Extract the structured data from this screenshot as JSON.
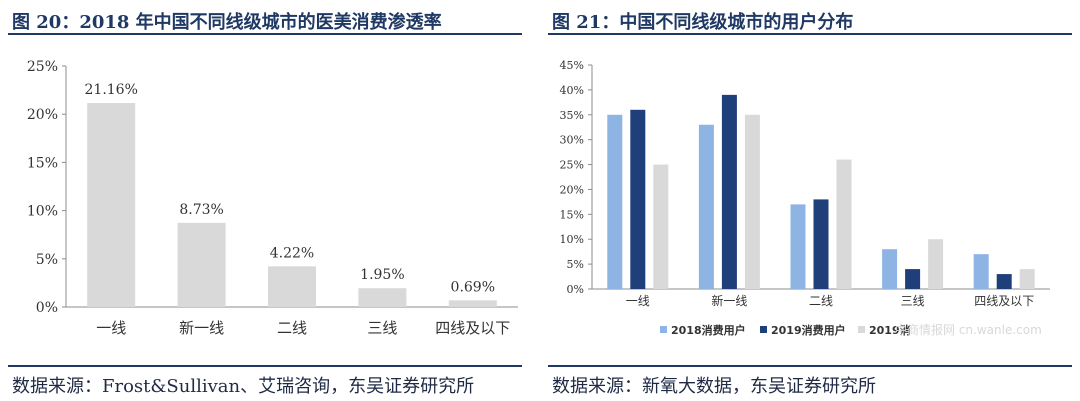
{
  "left": {
    "title": "图 20：2018 年中国不同线级城市的医美消费渗透率",
    "source": "数据来源：Frost&Sullivan、艾瑞咨询，东吴证券研究所"
  },
  "right": {
    "title": "图 21：中国不同线级城市的用户分布",
    "source": "数据来源：新氧大数据，东吴证券研究所"
  },
  "watermark": "中商情报网 cn.wanle.com",
  "colors": {
    "left_bar": "#d9d9d9",
    "series_2018": "#8eb4e3",
    "series_2019_consume": "#1f3f7a",
    "series_2019_other": "#d9d9d9",
    "title": "#1f3864"
  },
  "chart_data": [
    {
      "type": "bar",
      "categories": [
        "一线",
        "新一线",
        "二线",
        "三线",
        "四线及以下"
      ],
      "values": [
        21.16,
        8.73,
        4.22,
        1.95,
        0.69
      ],
      "data_labels": [
        "21.16%",
        "8.73%",
        "4.22%",
        "1.95%",
        "0.69%"
      ],
      "yticks": [
        "0%",
        "5%",
        "10%",
        "15%",
        "20%",
        "25%"
      ],
      "ylim": [
        0,
        25
      ],
      "grid": false,
      "legend": "none"
    },
    {
      "type": "bar",
      "categories": [
        "一线",
        "新一线",
        "二线",
        "三线",
        "四线及以下"
      ],
      "series": [
        {
          "name": "2018消费用户",
          "values": [
            35,
            33,
            17,
            8,
            7
          ]
        },
        {
          "name": "2019消费用户",
          "values": [
            36,
            39,
            18,
            4,
            3
          ]
        },
        {
          "name": "2019消",
          "values": [
            25,
            35,
            26,
            10,
            4
          ]
        }
      ],
      "yticks": [
        "0%",
        "5%",
        "10%",
        "15%",
        "20%",
        "25%",
        "30%",
        "35%",
        "40%",
        "45%"
      ],
      "ylim": [
        0,
        45
      ],
      "grid": false,
      "legend": "bottom"
    }
  ]
}
